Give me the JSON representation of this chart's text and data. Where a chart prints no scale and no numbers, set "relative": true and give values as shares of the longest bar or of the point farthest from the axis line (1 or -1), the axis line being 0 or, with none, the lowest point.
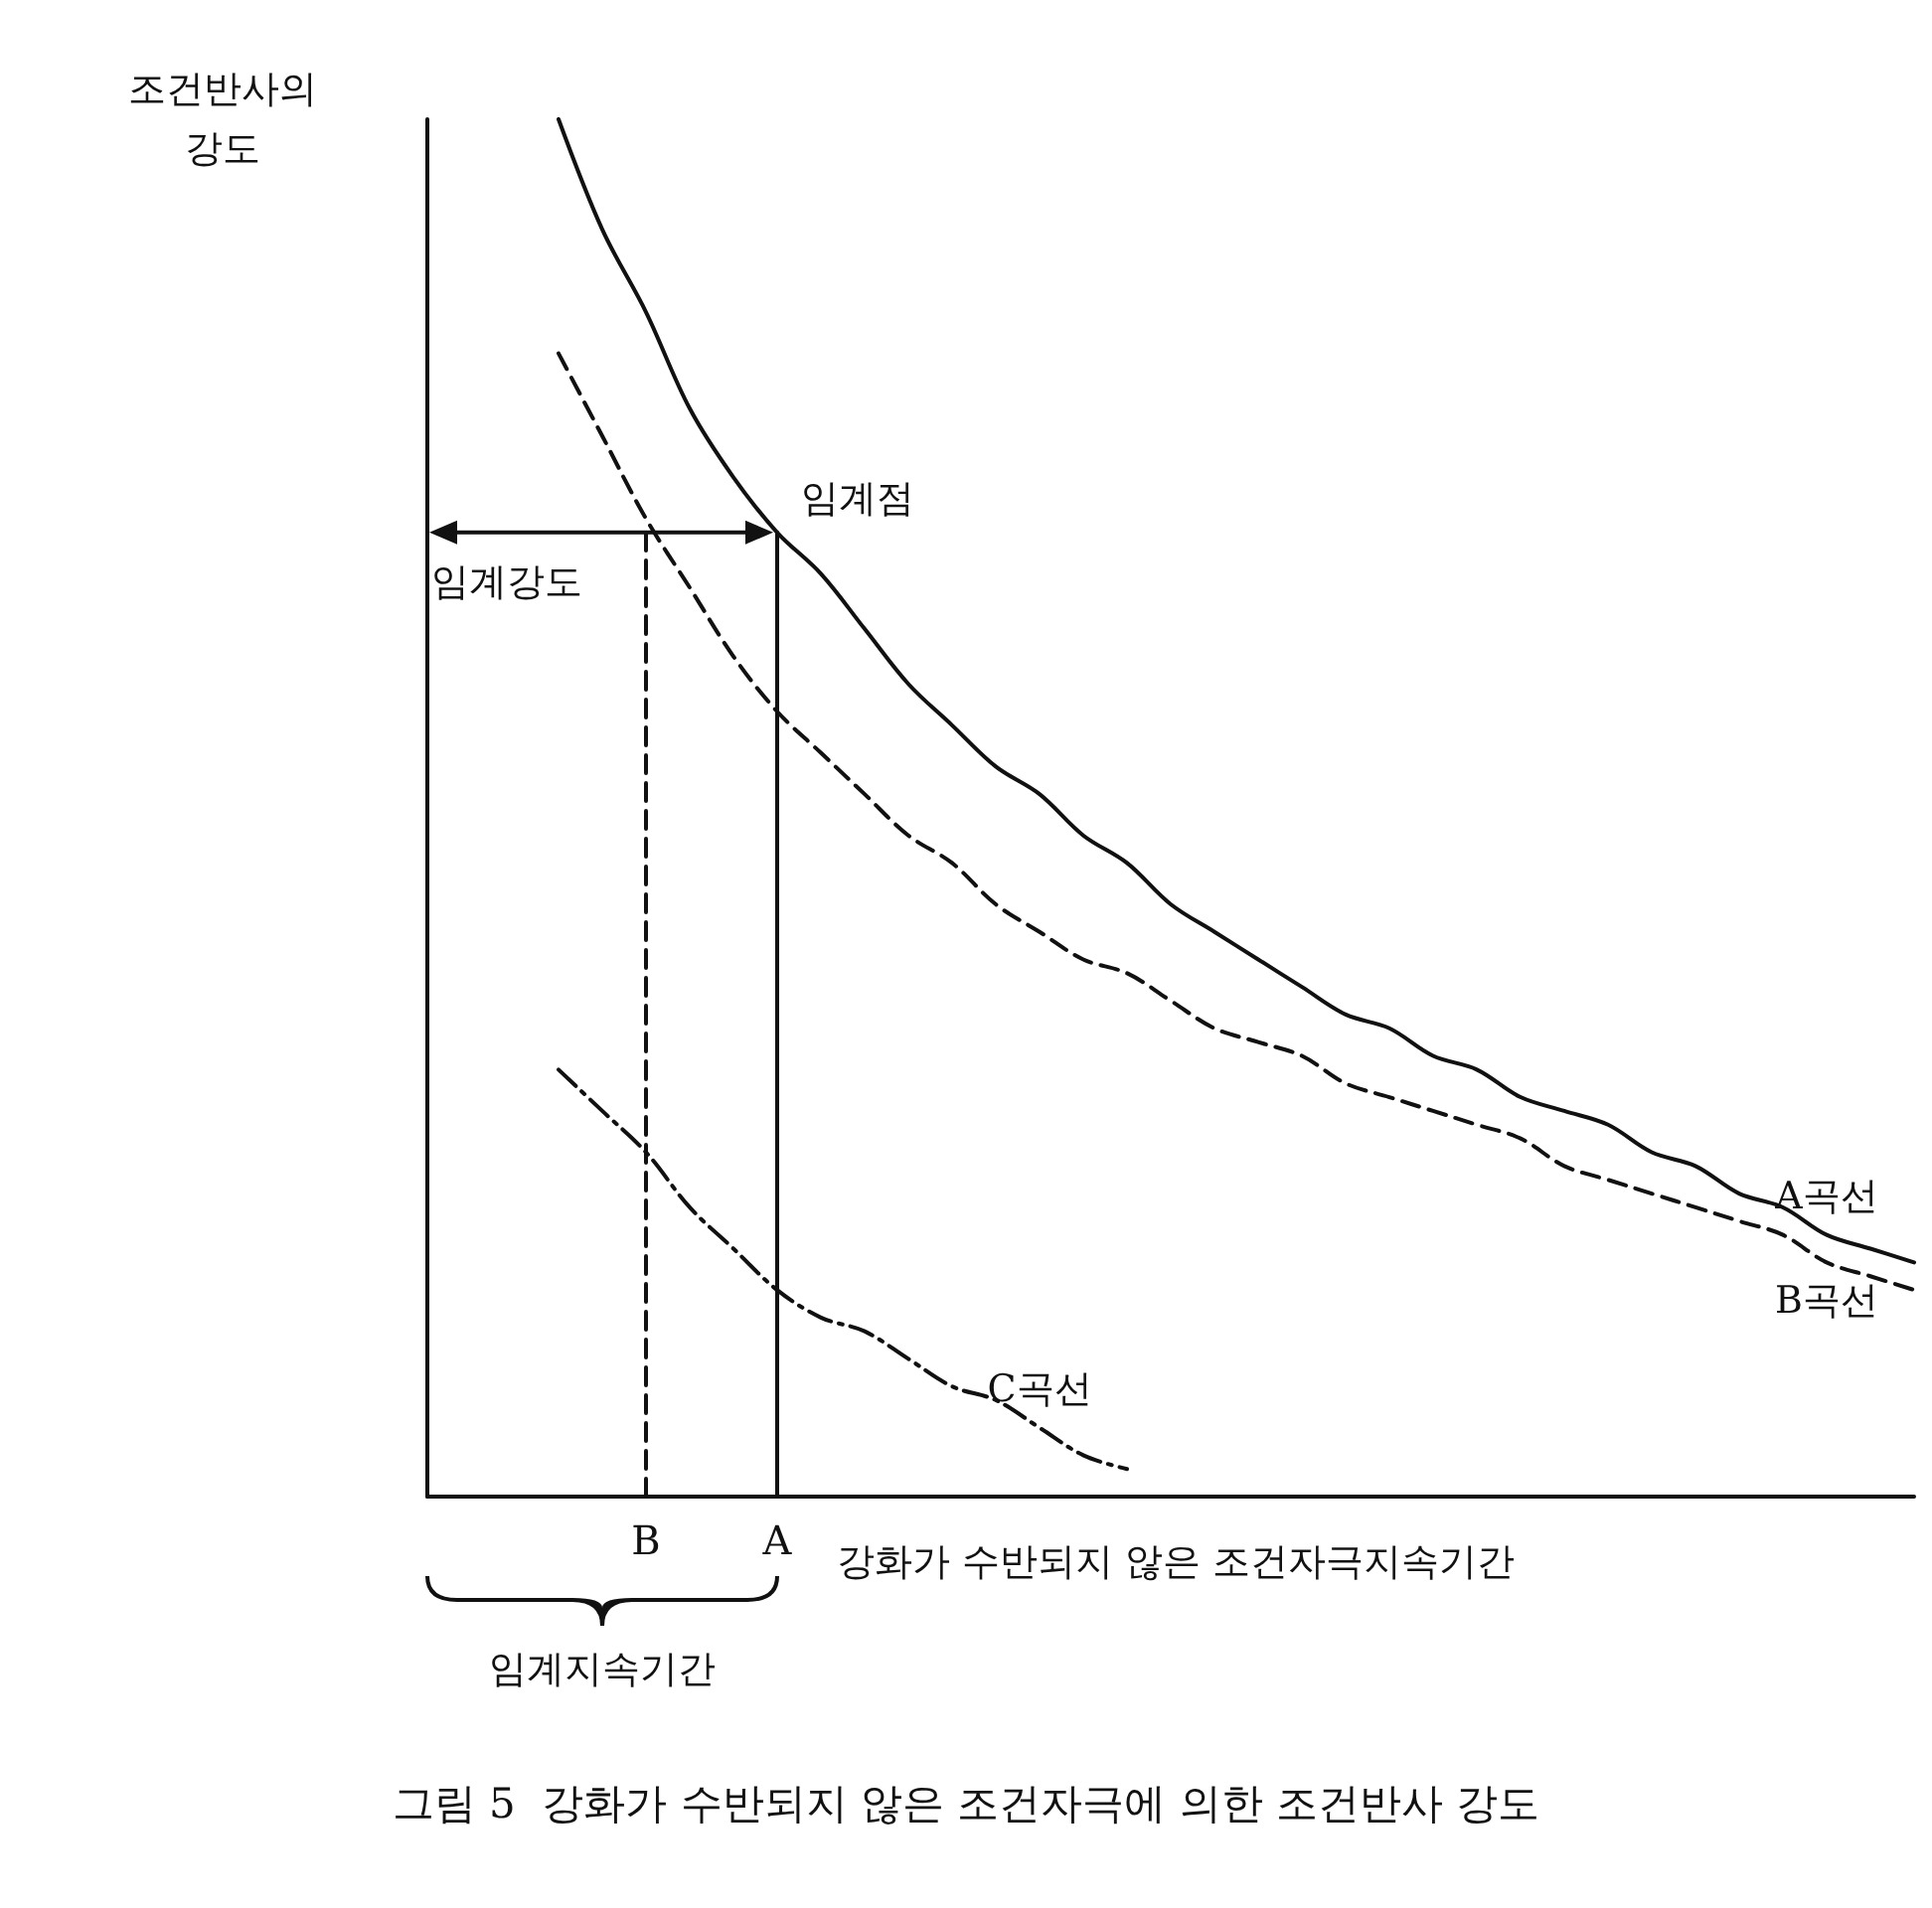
{
  "chart_data": {
    "type": "line",
    "relative": true,
    "title": "그림 5  강화가 수반되지 않은 조건자극에 의한 조건반사 강도",
    "xlabel": "강화가 수반되지 않은 조건자극지속기간",
    "ylabel": "조건반사의 강도",
    "categories": [
      null,
      null,
      null,
      null,
      null,
      "B",
      null,
      null,
      "A",
      null,
      null,
      null,
      null,
      null,
      null,
      null,
      null,
      null,
      null,
      null,
      null,
      null,
      null,
      null,
      null,
      null,
      null,
      null,
      null,
      null,
      null,
      null,
      null,
      null,
      null
    ],
    "series": [
      {
        "name": "A곡선",
        "color": "#111111",
        "line_style": "solid",
        "values": [
          null,
          null,
          null,
          1.0,
          0.92,
          0.86,
          0.79,
          0.74,
          0.7,
          0.67,
          0.63,
          0.59,
          0.56,
          0.53,
          0.51,
          0.48,
          0.46,
          0.43,
          0.41,
          0.39,
          0.37,
          0.35,
          0.34,
          0.32,
          0.31,
          0.29,
          0.28,
          0.27,
          0.25,
          0.24,
          0.22,
          0.21,
          0.19,
          0.18,
          0.17
        ]
      },
      {
        "name": "B곡선",
        "color": "#111111",
        "line_style": "dashed",
        "values": [
          null,
          null,
          null,
          0.83,
          0.77,
          0.71,
          0.66,
          0.61,
          0.57,
          0.54,
          0.51,
          0.48,
          0.46,
          0.43,
          0.41,
          0.39,
          0.38,
          0.36,
          0.34,
          0.33,
          0.32,
          0.3,
          0.29,
          0.28,
          0.27,
          0.26,
          0.24,
          0.23,
          0.22,
          0.21,
          0.2,
          0.19,
          0.17,
          0.16,
          0.15
        ]
      },
      {
        "name": "C곡선",
        "color": "#111111",
        "line_style": "dashdot",
        "values": [
          null,
          null,
          null,
          0.31,
          0.28,
          0.25,
          0.21,
          0.18,
          0.15,
          0.13,
          0.12,
          0.1,
          0.08,
          0.07,
          0.05,
          0.03,
          0.02,
          null,
          null,
          null,
          null,
          null,
          null,
          null,
          null,
          null,
          null,
          null,
          null,
          null,
          null,
          null,
          null,
          null,
          null
        ]
      },
      {
        "color": "#111111",
        "line_style": "solid",
        "x": [
          "A",
          "A"
        ],
        "values": [
          0,
          0.7
        ]
      },
      {
        "color": "#111111",
        "line_style": "dashed",
        "x": [
          "B",
          "B"
        ],
        "values": [
          0,
          0.7
        ]
      }
    ],
    "annotations": [
      {
        "text": "임계점",
        "x": "A",
        "y": 0.7
      },
      "임계강도",
      "임계지속기간"
    ],
    "grid": false,
    "legend": false
  }
}
